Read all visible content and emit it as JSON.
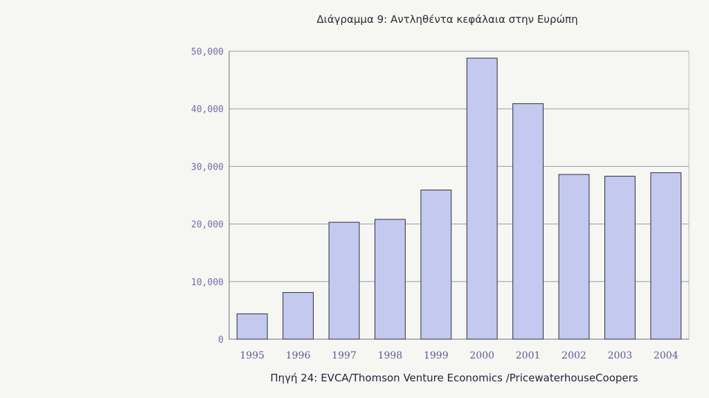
{
  "chart_data": {
    "type": "bar",
    "title": "Διάγραμμα 9: Αντληθέντα κεφάλαια στην Ευρώπη",
    "categories": [
      "1995",
      "1996",
      "1997",
      "1998",
      "1999",
      "2000",
      "2001",
      "2002",
      "2003",
      "2004"
    ],
    "values": [
      4400,
      8100,
      20300,
      20800,
      25900,
      48800,
      40900,
      28600,
      28300,
      28900
    ],
    "ylim": [
      0,
      50000
    ],
    "yticks": [
      0,
      10000,
      20000,
      30000,
      40000,
      50000
    ],
    "ytick_labels": [
      "0",
      "10,000",
      "20,000",
      "30,000",
      "40,000",
      "50,000"
    ],
    "xlabel": "",
    "ylabel": "",
    "grid": true,
    "bar_color": "#c4c9ef",
    "source": "Πηγή 24: EVCA/Thomson Venture Economics /PricewaterhouseCoopers"
  }
}
